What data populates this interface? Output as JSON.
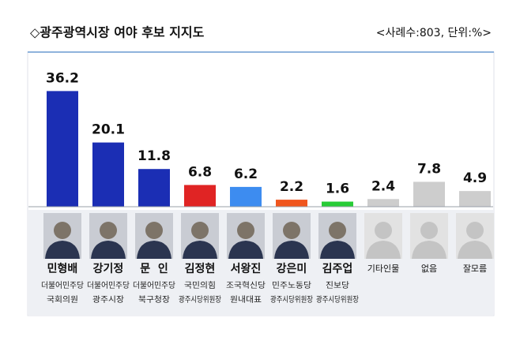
{
  "chart_data": {
    "type": "bar",
    "title": "◇광주광역시장 여야 후보 지지도",
    "subtitle": "<사례수:803, 단위:%>",
    "categories": [
      "민형배",
      "강기정",
      "문  인",
      "김정현",
      "서왕진",
      "강은미",
      "김주업",
      "기타인물",
      "없음",
      "잘모름"
    ],
    "parties": [
      "더불어민주당",
      "더불어민주당",
      "더불어민주당",
      "국민의힘",
      "조국혁신당",
      "민주노동당",
      "진보당",
      null,
      null,
      null
    ],
    "roles": [
      "국회의원",
      "광주시장",
      "북구청장",
      "광주시당위원장",
      "원내대표",
      "광주시당위원장",
      "광주시당위원장",
      null,
      null,
      null
    ],
    "values": [
      36.2,
      20.1,
      11.8,
      6.8,
      6.2,
      2.2,
      1.6,
      2.4,
      7.8,
      4.9
    ],
    "colors": [
      "#1b2eb4",
      "#1b2eb4",
      "#1b2eb4",
      "#e02424",
      "#3d8cf0",
      "#f0561e",
      "#27cc36",
      "#cdcdcd",
      "#cdcdcd",
      "#cdcdcd"
    ],
    "ylim": [
      0,
      40
    ]
  }
}
